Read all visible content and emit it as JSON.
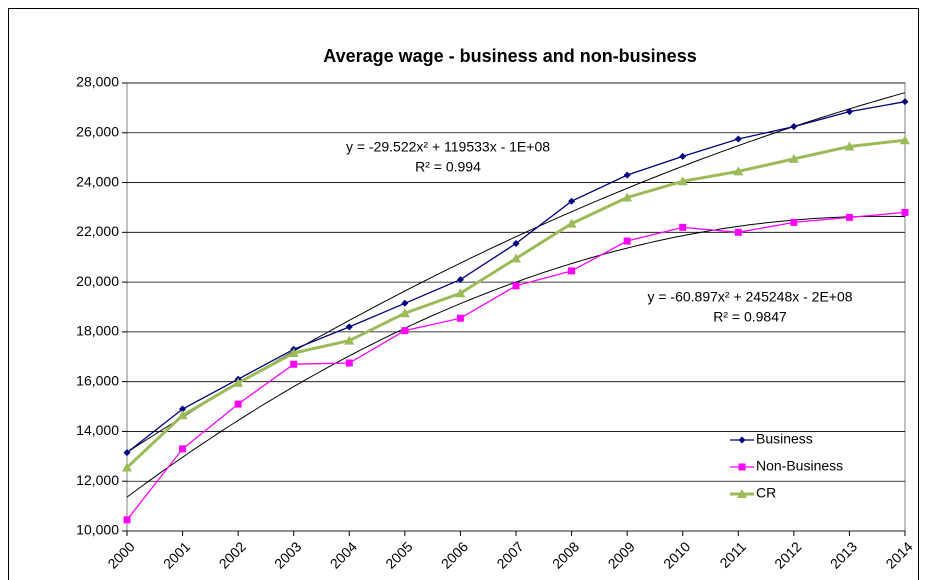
{
  "chart_data": {
    "type": "line",
    "title": "Average wage - business and non-business",
    "categories": [
      "2000",
      "2001",
      "2002",
      "2003",
      "2004",
      "2005",
      "2006",
      "2007",
      "2008",
      "2009",
      "2010",
      "2011",
      "2012",
      "2013",
      "2014"
    ],
    "series": [
      {
        "name": "Business",
        "color": "#000080",
        "marker": "diamond",
        "trendline": true,
        "values": [
          13150,
          14900,
          16100,
          17300,
          18200,
          19150,
          20100,
          21550,
          23250,
          24300,
          25050,
          25750,
          26250,
          26850,
          27250
        ]
      },
      {
        "name": "Non-Business",
        "color": "#ff00ff",
        "marker": "square",
        "trendline": true,
        "values": [
          10450,
          13300,
          15100,
          16700,
          16750,
          18050,
          18550,
          19850,
          20450,
          21650,
          22200,
          22000,
          22400,
          22600,
          22800
        ]
      },
      {
        "name": "CR",
        "color": "#9bbb59",
        "marker": "triangle",
        "trendline": false,
        "values": [
          12550,
          14650,
          15950,
          17150,
          17650,
          18750,
          19550,
          20950,
          22350,
          23400,
          24050,
          24450,
          24950,
          25450,
          25700
        ]
      }
    ],
    "ylim": [
      10000,
      28000
    ],
    "yticks": [
      {
        "value": 10000,
        "label": "10,000"
      },
      {
        "value": 12000,
        "label": "12,000"
      },
      {
        "value": 14000,
        "label": "14,000"
      },
      {
        "value": 16000,
        "label": "16,000"
      },
      {
        "value": 18000,
        "label": "18,000"
      },
      {
        "value": 20000,
        "label": "20,000"
      },
      {
        "value": 22000,
        "label": "22,000"
      },
      {
        "value": 24000,
        "label": "24,000"
      },
      {
        "value": 26000,
        "label": "26,000"
      },
      {
        "value": 28000,
        "label": "28,000"
      }
    ],
    "grid": true,
    "legend": "lower right",
    "annotations": [
      {
        "text": "y = -29.522x² + 119533x - 1E+08",
        "r2": "R² = 0.994"
      },
      {
        "text": "y = -60.897x² + 245248x - 2E+08",
        "r2": "R² = 0.9847"
      }
    ]
  }
}
